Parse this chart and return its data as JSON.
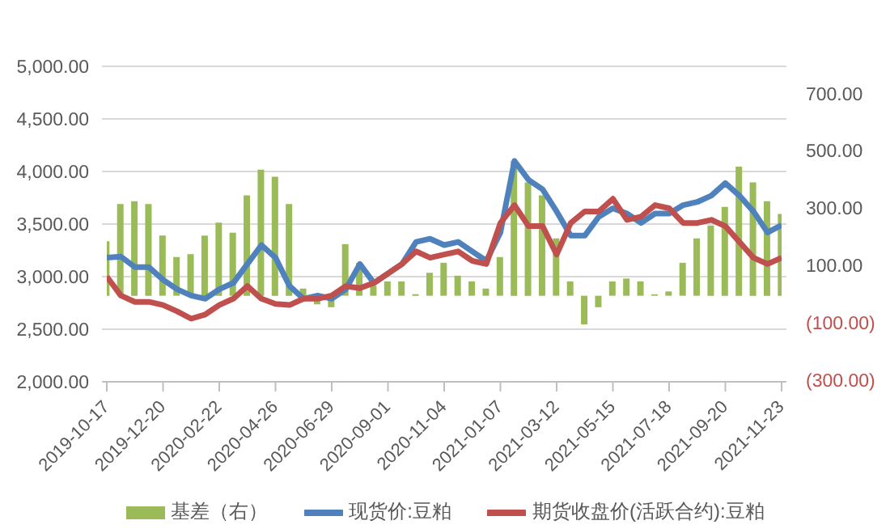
{
  "chart_data": {
    "type": "line",
    "x": [
      "2019-10-17",
      "2019-11-02",
      "2019-11-18",
      "2019-12-04",
      "2019-12-20",
      "2020-01-05",
      "2020-01-21",
      "2020-02-06",
      "2020-02-22",
      "2020-03-09",
      "2020-03-25",
      "2020-04-10",
      "2020-04-26",
      "2020-05-12",
      "2020-05-28",
      "2020-06-13",
      "2020-06-29",
      "2020-07-15",
      "2020-07-31",
      "2020-08-16",
      "2020-09-01",
      "2020-09-17",
      "2020-10-03",
      "2020-10-19",
      "2020-11-04",
      "2020-11-20",
      "2020-12-06",
      "2020-12-22",
      "2021-01-07",
      "2021-01-23",
      "2021-02-08",
      "2021-02-24",
      "2021-03-12",
      "2021-03-28",
      "2021-04-13",
      "2021-04-29",
      "2021-05-15",
      "2021-05-31",
      "2021-06-16",
      "2021-07-02",
      "2021-07-18",
      "2021-08-03",
      "2021-08-19",
      "2021-09-04",
      "2021-09-20",
      "2021-10-06",
      "2021-10-22",
      "2021-11-07",
      "2021-11-23"
    ],
    "series": [
      {
        "name": "基差（右）",
        "type": "bar",
        "axis": "y2",
        "color": "#9bbb59",
        "values": [
          190,
          320,
          330,
          320,
          210,
          135,
          145,
          210,
          255,
          220,
          350,
          440,
          415,
          320,
          25,
          -30,
          -40,
          180,
          115,
          35,
          50,
          50,
          5,
          80,
          115,
          70,
          50,
          25,
          135,
          470,
          395,
          350,
          200,
          50,
          -100,
          -40,
          50,
          60,
          50,
          5,
          15,
          115,
          200,
          245,
          310,
          450,
          395,
          330,
          285
        ]
      },
      {
        "name": "现货价:豆粕",
        "color": "#4f81bd",
        "values": [
          3180,
          3190,
          3090,
          3090,
          2970,
          2880,
          2820,
          2790,
          2880,
          2940,
          3120,
          3300,
          3180,
          2910,
          2790,
          2820,
          2790,
          2880,
          3120,
          2940,
          3030,
          3120,
          3330,
          3360,
          3300,
          3330,
          3240,
          3150,
          3420,
          4100,
          3920,
          3830,
          3620,
          3390,
          3390,
          3570,
          3650,
          3600,
          3510,
          3600,
          3600,
          3680,
          3710,
          3770,
          3890,
          3770,
          3620,
          3420,
          3490
        ]
      },
      {
        "name": "期货收盘价(活跃合约):豆粕",
        "color": "#c0504d",
        "values": [
          3000,
          2820,
          2760,
          2760,
          2730,
          2670,
          2600,
          2640,
          2730,
          2790,
          2910,
          2790,
          2740,
          2730,
          2790,
          2790,
          2820,
          2910,
          2890,
          2940,
          3030,
          3120,
          3240,
          3180,
          3210,
          3240,
          3150,
          3120,
          3510,
          3680,
          3480,
          3480,
          3210,
          3510,
          3620,
          3620,
          3740,
          3540,
          3570,
          3680,
          3650,
          3510,
          3510,
          3540,
          3480,
          3330,
          3180,
          3120,
          3180
        ]
      }
    ],
    "xlim": [
      "2019-10-17",
      "2021-11-23"
    ],
    "xticks": [
      "2019-10-17",
      "2019-12-20",
      "2020-02-22",
      "2020-04-26",
      "2020-06-29",
      "2020-09-01",
      "2020-11-04",
      "2021-01-07",
      "2021-03-12",
      "2021-05-15",
      "2021-07-18",
      "2021-09-20",
      "2021-11-23"
    ],
    "ylim": [
      2000,
      5000
    ],
    "yticks": [
      {
        "value": 2000,
        "label": "2,000.00"
      },
      {
        "value": 2500,
        "label": "2,500.00"
      },
      {
        "value": 3000,
        "label": "3,000.00"
      },
      {
        "value": 3500,
        "label": "3,500.00"
      },
      {
        "value": 4000,
        "label": "4,000.00"
      },
      {
        "value": 4500,
        "label": "4,500.00"
      },
      {
        "value": 5000,
        "label": "5,000.00"
      }
    ],
    "y2lim": [
      -300,
      800
    ],
    "y2ticks": [
      {
        "value": -300,
        "label": "(300.00)"
      },
      {
        "value": -100,
        "label": "(100.00)"
      },
      {
        "value": 100,
        "label": "100.00"
      },
      {
        "value": 300,
        "label": "300.00"
      },
      {
        "value": 500,
        "label": "500.00"
      },
      {
        "value": 700,
        "label": "700.00"
      }
    ],
    "grid": "y",
    "legend": "bottom"
  }
}
